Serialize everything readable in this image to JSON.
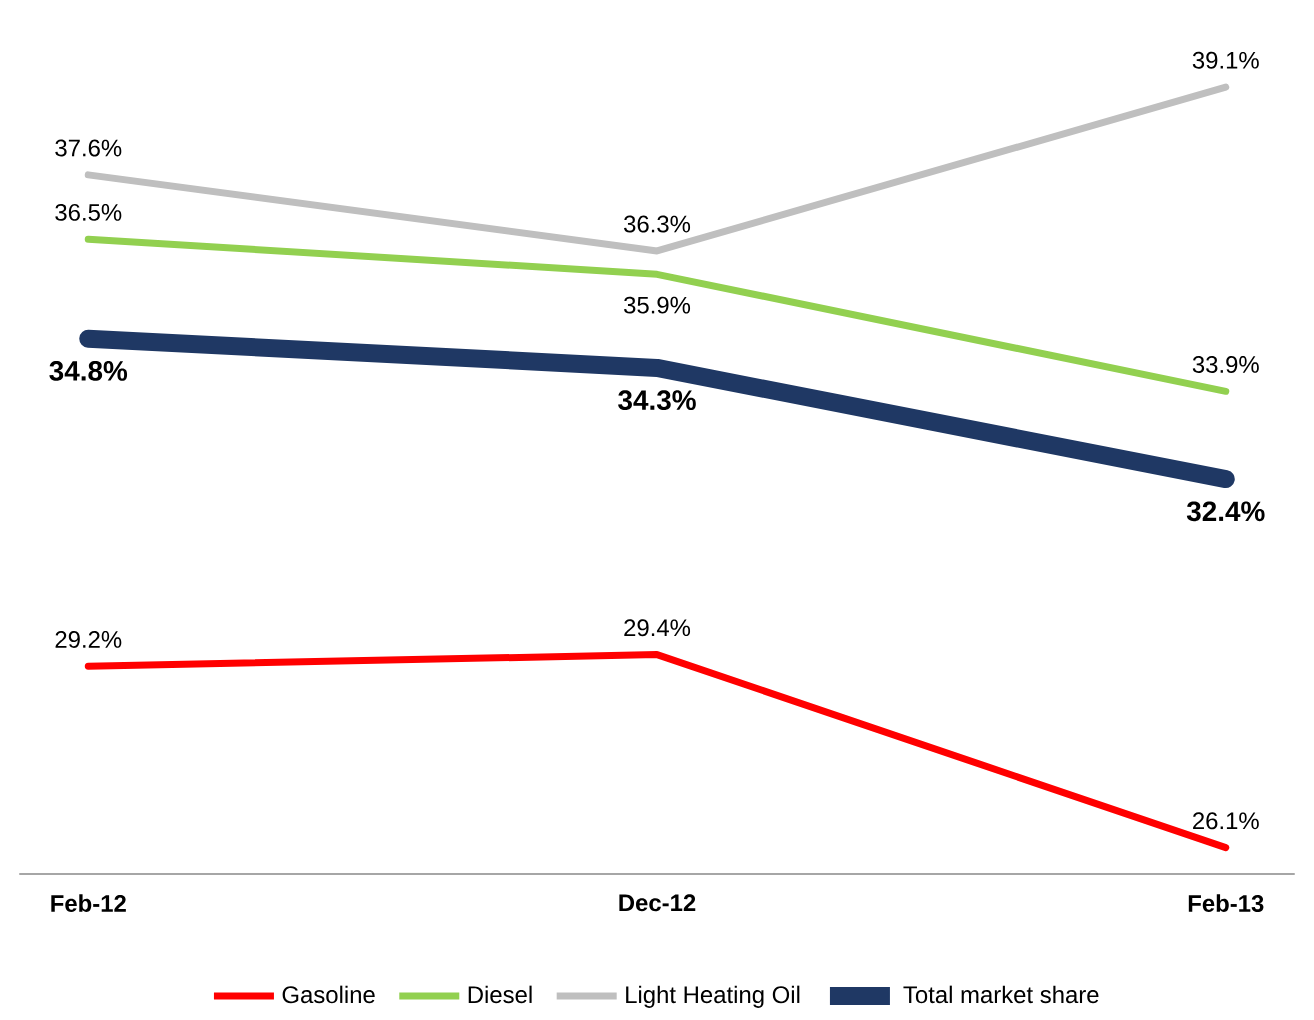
{
  "chart_data": {
    "type": "line",
    "categories": [
      "Feb-12",
      "Dec-12",
      "Feb-13"
    ],
    "series": [
      {
        "name": "Gasoline",
        "color": "#ff0000",
        "values": [
          29.2,
          29.4,
          26.1
        ],
        "value_labels": [
          "29.2%",
          "29.4%",
          "26.1%"
        ]
      },
      {
        "name": "Diesel",
        "color": "#92d050",
        "values": [
          36.5,
          35.9,
          33.9
        ],
        "value_labels": [
          "36.5%",
          "35.9%",
          "33.9%"
        ]
      },
      {
        "name": "Light Heating Oil",
        "color": "#bfbfbf",
        "values": [
          37.6,
          36.3,
          39.1
        ],
        "value_labels": [
          "37.6%",
          "36.3%",
          "39.1%"
        ]
      },
      {
        "name": "Total market share",
        "color": "#1f3864",
        "values": [
          34.8,
          34.3,
          32.4
        ],
        "value_labels": [
          "34.8%",
          "34.3%",
          "32.4%"
        ]
      }
    ],
    "legend": "bottom",
    "marker": "none",
    "line_style": "solid",
    "tick_labels": "x"
  }
}
